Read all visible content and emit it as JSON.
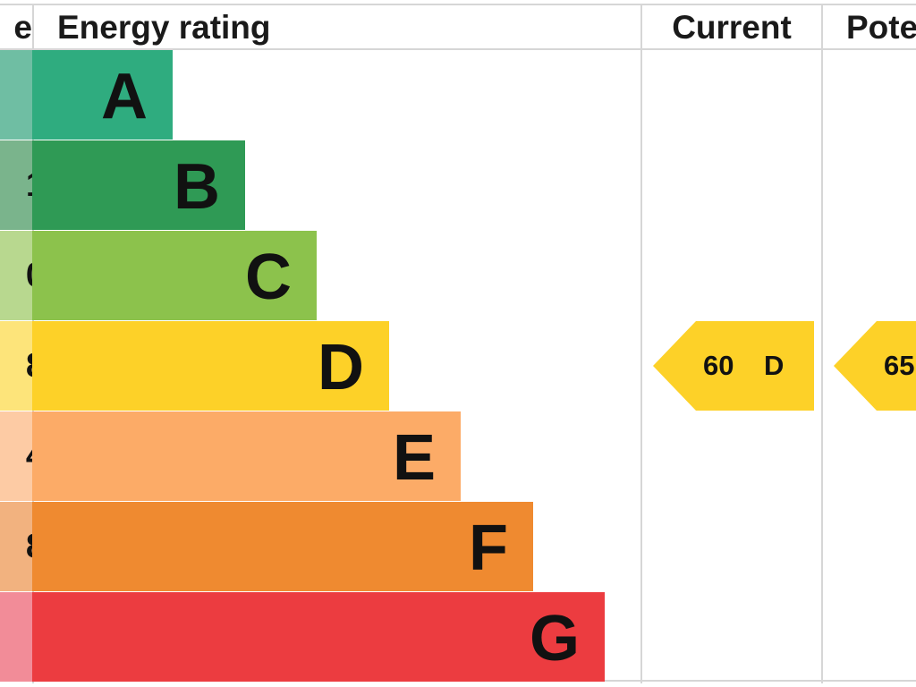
{
  "chart_data": {
    "type": "bar",
    "headers": {
      "score": "e",
      "rating": "Energy rating",
      "current": "Current",
      "potential": "Pote"
    },
    "bands": [
      {
        "letter": "A",
        "score_fragment": "",
        "color": "#2fac7f",
        "score_color": "#6fbea3"
      },
      {
        "letter": "B",
        "score_fragment": "1",
        "color": "#2f9a55",
        "score_color": "#7ab48c"
      },
      {
        "letter": "C",
        "score_fragment": "0",
        "color": "#8cc24c",
        "score_color": "#b8d88f"
      },
      {
        "letter": "D",
        "score_fragment": "8",
        "color": "#fdd128",
        "score_color": "#fde47a"
      },
      {
        "letter": "E",
        "score_fragment": "4",
        "color": "#fcab67",
        "score_color": "#fdcba4"
      },
      {
        "letter": "F",
        "score_fragment": "8",
        "color": "#ef8a30",
        "score_color": "#f2b27f"
      },
      {
        "letter": "G",
        "score_fragment": "",
        "color": "#ec3c40",
        "score_color": "#f28c98"
      }
    ],
    "current": {
      "value": "60",
      "band": "D",
      "color": "#fdd128"
    },
    "potential": {
      "value": "65",
      "band": "",
      "color": "#fdd128"
    }
  }
}
